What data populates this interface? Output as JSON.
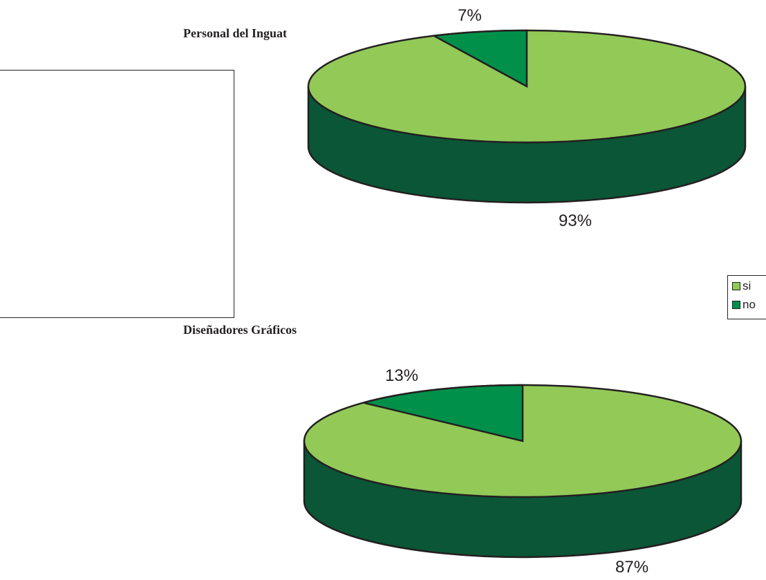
{
  "colors": {
    "si": "#92c957",
    "no": "#00904a",
    "side": "#0a5636",
    "outline": "#231f20"
  },
  "legend": {
    "items": [
      {
        "label": "si"
      },
      {
        "label": "no"
      }
    ]
  },
  "chart_data": [
    {
      "type": "pie",
      "title": "Personal del Inguat",
      "categories": [
        "si",
        "no"
      ],
      "values": [
        93,
        7
      ],
      "labels": [
        "93%",
        "7%"
      ],
      "legend_position": "right"
    },
    {
      "type": "pie",
      "title": "Diseñadores Gráficos",
      "categories": [
        "si",
        "no"
      ],
      "values": [
        87,
        13
      ],
      "labels": [
        "87%",
        "13%"
      ],
      "legend_position": "right"
    }
  ]
}
